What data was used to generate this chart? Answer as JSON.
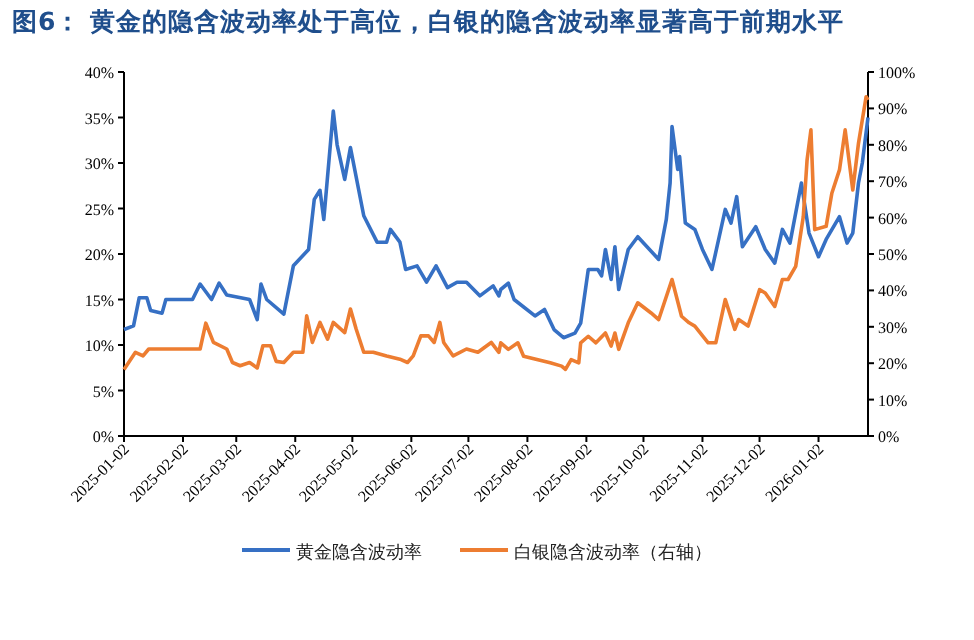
{
  "chart_data": {
    "type": "line",
    "title": "图6： 黄金的隐含波动率处于高位，白银的隐含波动率显著高于前期水平",
    "xlim": [
      "2025-01-02",
      "2026-01-28"
    ],
    "xticks": [
      "2025-01-02",
      "2025-02-02",
      "2025-03-02",
      "2025-04-02",
      "2025-05-02",
      "2025-06-02",
      "2025-07-02",
      "2025-08-02",
      "2025-09-02",
      "2025-10-02",
      "2025-11-02",
      "2025-12-02",
      "2026-01-02"
    ],
    "ylim": [
      0,
      40
    ],
    "yticks": [
      {
        "value": 0,
        "label": "0%"
      },
      {
        "value": 5,
        "label": "5%"
      },
      {
        "value": 10,
        "label": "10%"
      },
      {
        "value": 15,
        "label": "15%"
      },
      {
        "value": 20,
        "label": "20%"
      },
      {
        "value": 25,
        "label": "25%"
      },
      {
        "value": 30,
        "label": "30%"
      },
      {
        "value": 35,
        "label": "35%"
      },
      {
        "value": 40,
        "label": "40%"
      }
    ],
    "y2lim": [
      0,
      100
    ],
    "y2ticks": [
      {
        "value": 0,
        "label": "0%"
      },
      {
        "value": 10,
        "label": "10%"
      },
      {
        "value": 20,
        "label": "20%"
      },
      {
        "value": 30,
        "label": "30%"
      },
      {
        "value": 40,
        "label": "40%"
      },
      {
        "value": 50,
        "label": "50%"
      },
      {
        "value": 60,
        "label": "60%"
      },
      {
        "value": 70,
        "label": "70%"
      },
      {
        "value": 80,
        "label": "80%"
      },
      {
        "value": 90,
        "label": "90%"
      },
      {
        "value": 100,
        "label": "100%"
      }
    ],
    "legend": "bottom",
    "grid": false,
    "series": [
      {
        "name": "黄金隐含波动率",
        "color": "#3670c4",
        "x": [
          "2025-01-02",
          "2025-01-07",
          "2025-01-10",
          "2025-01-14",
          "2025-01-16",
          "2025-01-22",
          "2025-01-24",
          "2025-02-07",
          "2025-02-11",
          "2025-02-17",
          "2025-02-21",
          "2025-02-25",
          "2025-03-09",
          "2025-03-13",
          "2025-03-15",
          "2025-03-18",
          "2025-03-27",
          "2025-04-01",
          "2025-04-09",
          "2025-04-12",
          "2025-04-15",
          "2025-04-17",
          "2025-04-22",
          "2025-04-24",
          "2025-04-28",
          "2025-05-01",
          "2025-05-08",
          "2025-05-15",
          "2025-05-20",
          "2025-05-22",
          "2025-05-27",
          "2025-05-30",
          "2025-06-05",
          "2025-06-10",
          "2025-06-15",
          "2025-06-21",
          "2025-06-26",
          "2025-07-01",
          "2025-07-08",
          "2025-07-15",
          "2025-07-18",
          "2025-07-19",
          "2025-07-23",
          "2025-07-26",
          "2025-08-06",
          "2025-08-11",
          "2025-08-16",
          "2025-08-21",
          "2025-08-27",
          "2025-08-30",
          "2025-09-03",
          "2025-09-08",
          "2025-09-10",
          "2025-09-12",
          "2025-09-15",
          "2025-09-17",
          "2025-09-19",
          "2025-09-24",
          "2025-09-29",
          "2025-10-10",
          "2025-10-14",
          "2025-10-16",
          "2025-10-17",
          "2025-10-20",
          "2025-10-21",
          "2025-10-24",
          "2025-10-29",
          "2025-11-02",
          "2025-11-07",
          "2025-11-14",
          "2025-11-17",
          "2025-11-20",
          "2025-11-23",
          "2025-11-30",
          "2025-12-05",
          "2025-12-10",
          "2025-12-14",
          "2025-12-18",
          "2025-12-24",
          "2025-12-28",
          "2026-01-02",
          "2026-01-06",
          "2026-01-13",
          "2026-01-17",
          "2026-01-20",
          "2026-01-23",
          "2026-01-25",
          "2026-01-28"
        ],
        "values": [
          11.7,
          12.1,
          15.2,
          15.2,
          13.8,
          13.5,
          15,
          15,
          16.7,
          15,
          16.8,
          15.5,
          15,
          12.8,
          16.7,
          15,
          13.4,
          18.7,
          20.5,
          26,
          27,
          23.8,
          35.7,
          32,
          28.2,
          31.7,
          24.2,
          21.3,
          21.3,
          22.7,
          21.3,
          18.3,
          18.7,
          16.9,
          18.7,
          16.3,
          16.9,
          16.9,
          15.4,
          16.5,
          15.4,
          16.1,
          16.8,
          15,
          13.2,
          13.9,
          11.7,
          10.8,
          11.3,
          12.4,
          18.3,
          18.3,
          17.6,
          20.5,
          17.2,
          20.8,
          16.1,
          20.5,
          21.9,
          19.4,
          23.8,
          27.8,
          34,
          29.3,
          30.7,
          23.4,
          22.7,
          20.5,
          18.3,
          24.9,
          23.4,
          26.3,
          20.8,
          23,
          20.5,
          19,
          22.7,
          21.2,
          27.8,
          22.3,
          19.7,
          21.6,
          24.1,
          21.2,
          22.3,
          27.8,
          30,
          35
        ]
      },
      {
        "name": "白银隐含波动率（右轴）",
        "color": "#ed7d31",
        "axis": "y2",
        "x": [
          "2025-01-02",
          "2025-01-08",
          "2025-01-12",
          "2025-01-15",
          "2025-01-28",
          "2025-02-11",
          "2025-02-14",
          "2025-02-18",
          "2025-02-25",
          "2025-02-28",
          "2025-03-04",
          "2025-03-09",
          "2025-03-13",
          "2025-03-16",
          "2025-03-20",
          "2025-03-23",
          "2025-03-27",
          "2025-04-01",
          "2025-04-06",
          "2025-04-08",
          "2025-04-11",
          "2025-04-15",
          "2025-04-19",
          "2025-04-22",
          "2025-04-28",
          "2025-05-01",
          "2025-05-04",
          "2025-05-08",
          "2025-05-13",
          "2025-05-20",
          "2025-05-27",
          "2025-05-31",
          "2025-06-03",
          "2025-06-07",
          "2025-06-11",
          "2025-06-14",
          "2025-06-17",
          "2025-06-19",
          "2025-06-24",
          "2025-07-01",
          "2025-07-07",
          "2025-07-14",
          "2025-07-18",
          "2025-07-19",
          "2025-07-23",
          "2025-07-28",
          "2025-07-31",
          "2025-08-07",
          "2025-08-14",
          "2025-08-20",
          "2025-08-22",
          "2025-08-25",
          "2025-08-29",
          "2025-08-30",
          "2025-09-03",
          "2025-09-07",
          "2025-09-12",
          "2025-09-15",
          "2025-09-17",
          "2025-09-19",
          "2025-09-24",
          "2025-09-29",
          "2025-10-06",
          "2025-10-10",
          "2025-10-17",
          "2025-10-22",
          "2025-10-26",
          "2025-10-29",
          "2025-11-05",
          "2025-11-09",
          "2025-11-14",
          "2025-11-19",
          "2025-11-21",
          "2025-11-26",
          "2025-12-02",
          "2025-12-05",
          "2025-12-10",
          "2025-12-14",
          "2025-12-17",
          "2025-12-21",
          "2025-12-25",
          "2025-12-27",
          "2025-12-29",
          "2025-12-31",
          "2026-01-06",
          "2026-01-09",
          "2026-01-13",
          "2026-01-16",
          "2026-01-20",
          "2026-01-23",
          "2026-01-27",
          "2026-01-28"
        ],
        "values": [
          18.3,
          23,
          22,
          23.9,
          23.9,
          23.9,
          31,
          25.7,
          23.9,
          20.2,
          19.3,
          20.2,
          18.7,
          24.8,
          24.8,
          20.5,
          20.2,
          23,
          23,
          33,
          25.7,
          31.2,
          26.6,
          31.2,
          28.4,
          34.9,
          29.4,
          23,
          23,
          22,
          21.1,
          20.2,
          22,
          27.5,
          27.5,
          25.7,
          31.2,
          25.7,
          22,
          23.9,
          23,
          25.7,
          23,
          25.6,
          23.8,
          25.6,
          21.9,
          21,
          20.1,
          19.2,
          18.3,
          21,
          20.1,
          25.6,
          27.4,
          25.6,
          28.3,
          24.7,
          28.3,
          23.8,
          31.1,
          36.6,
          33.8,
          32,
          43,
          32.9,
          31.1,
          30.2,
          25.6,
          25.6,
          37.5,
          29.3,
          32,
          30.2,
          40.2,
          39.3,
          35.6,
          43,
          43,
          46.6,
          60.3,
          75.9,
          84.1,
          56.7,
          57.6,
          66.7,
          73.1,
          84.1,
          67.6,
          80.4,
          93.2,
          92.3
        ]
      }
    ]
  }
}
